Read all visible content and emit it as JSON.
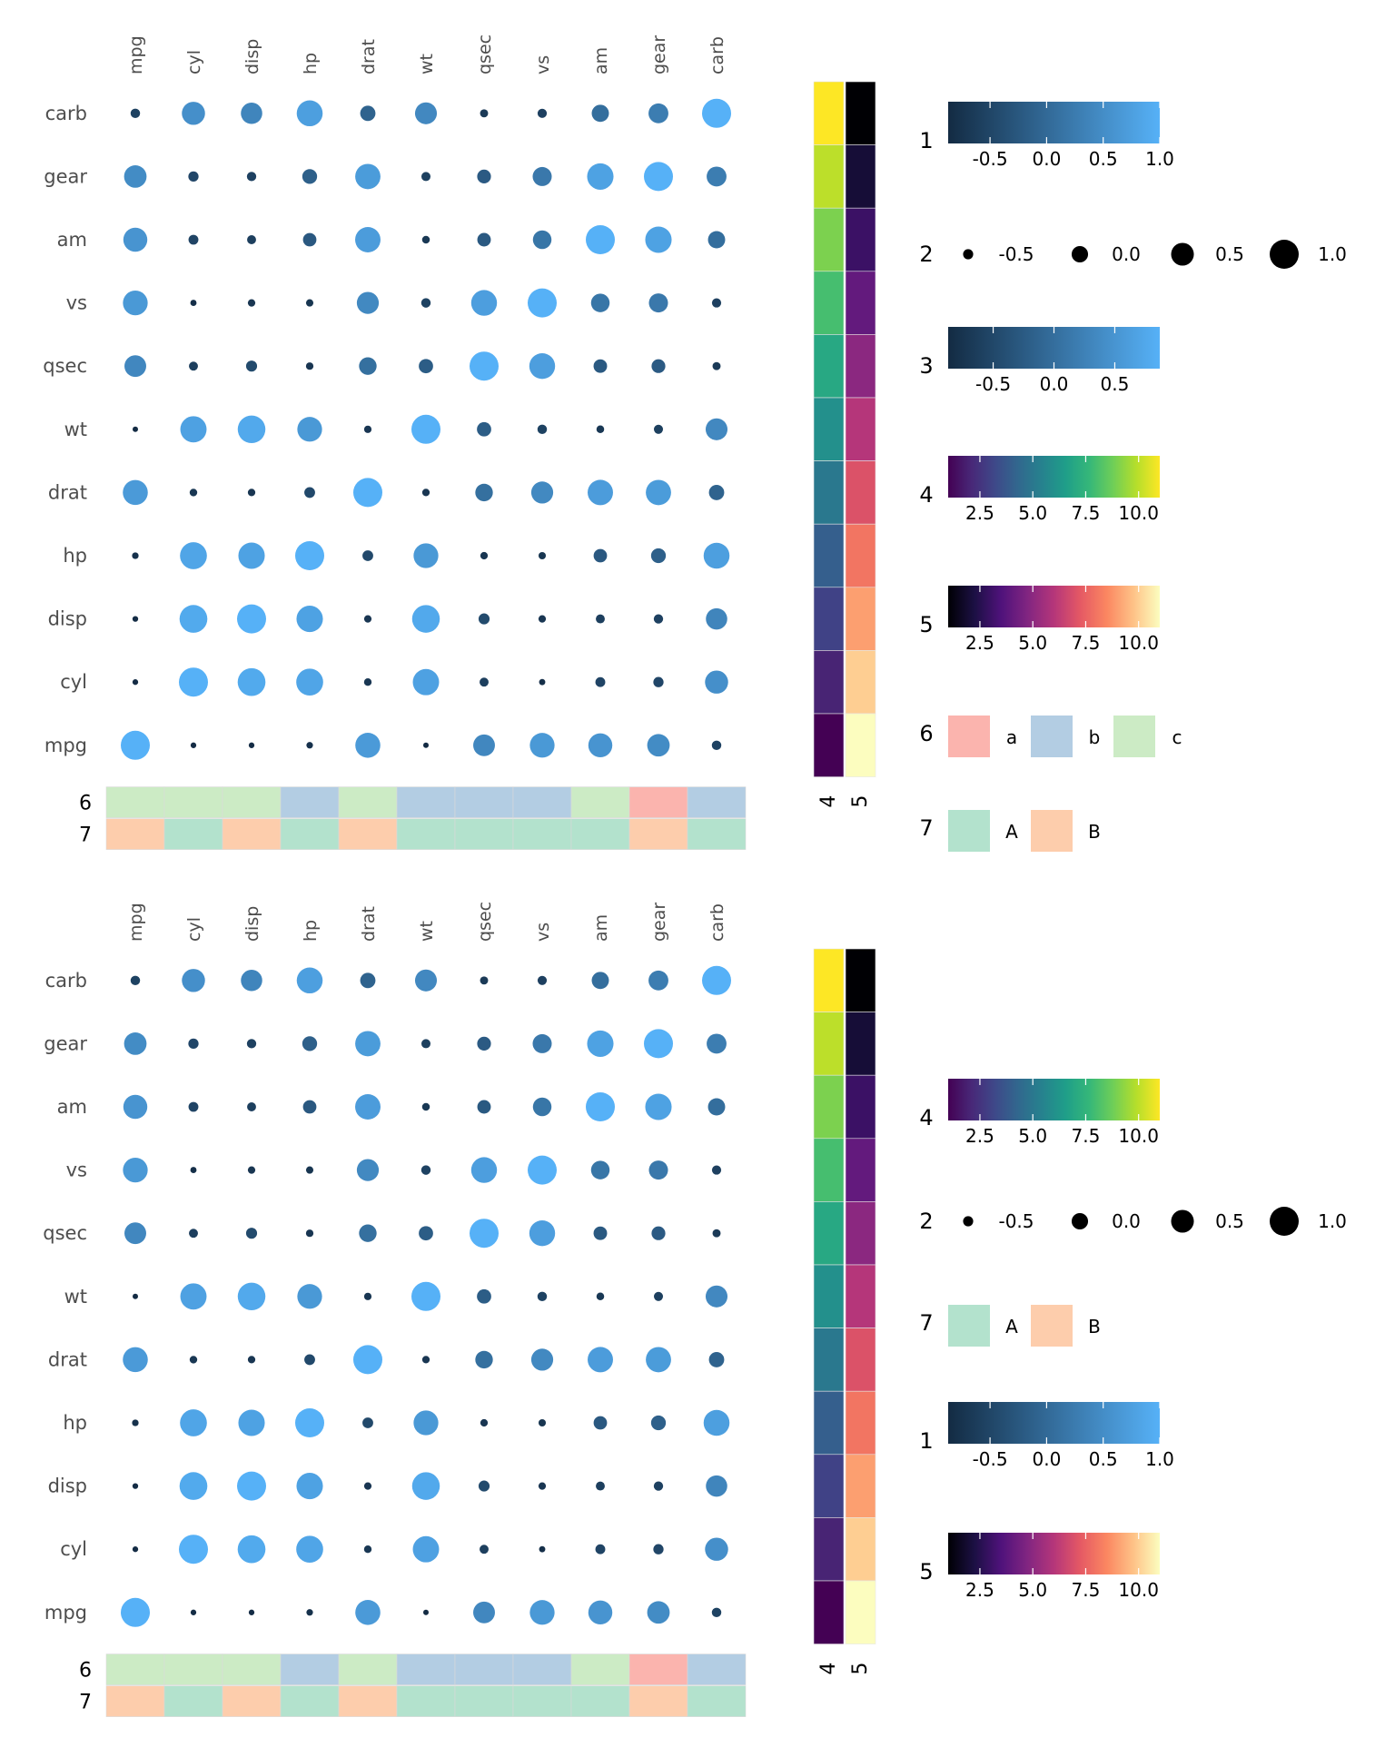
{
  "chart_data": [
    {
      "type": "heatmap",
      "variables": [
        "mpg",
        "cyl",
        "disp",
        "hp",
        "drat",
        "wt",
        "qsec",
        "vs",
        "am",
        "gear",
        "carb"
      ],
      "rows": [
        "carb",
        "gear",
        "am",
        "vs",
        "qsec",
        "wt",
        "drat",
        "hp",
        "disp",
        "cyl",
        "mpg"
      ],
      "correlation": [
        [
          1.0,
          -0.85,
          -0.85,
          -0.78,
          0.68,
          -0.87,
          0.42,
          0.66,
          0.6,
          0.48,
          -0.55
        ],
        [
          -0.85,
          1.0,
          0.9,
          0.83,
          -0.7,
          0.78,
          -0.59,
          -0.81,
          -0.52,
          -0.49,
          0.53
        ],
        [
          -0.85,
          0.9,
          1.0,
          0.79,
          -0.71,
          0.89,
          -0.43,
          -0.71,
          -0.59,
          -0.56,
          0.39
        ],
        [
          -0.78,
          0.83,
          0.79,
          1.0,
          -0.45,
          0.66,
          -0.71,
          -0.72,
          -0.24,
          -0.13,
          0.75
        ],
        [
          0.68,
          -0.7,
          -0.71,
          -0.45,
          1.0,
          -0.71,
          0.09,
          0.44,
          0.71,
          0.7,
          -0.09
        ],
        [
          -0.87,
          0.78,
          0.89,
          0.66,
          -0.71,
          1.0,
          -0.17,
          -0.55,
          -0.69,
          -0.58,
          0.43
        ],
        [
          0.42,
          -0.59,
          -0.43,
          -0.71,
          0.09,
          -0.17,
          1.0,
          0.74,
          -0.23,
          -0.21,
          -0.66
        ],
        [
          0.66,
          -0.81,
          -0.71,
          -0.72,
          0.44,
          -0.55,
          0.74,
          1.0,
          0.17,
          0.21,
          -0.57
        ],
        [
          0.6,
          -0.52,
          -0.59,
          -0.24,
          0.71,
          -0.69,
          -0.23,
          0.17,
          1.0,
          0.79,
          0.06
        ],
        [
          0.48,
          -0.49,
          -0.56,
          -0.13,
          0.7,
          -0.58,
          -0.21,
          0.21,
          0.79,
          1.0,
          0.27
        ],
        [
          -0.55,
          0.53,
          0.39,
          0.75,
          -0.09,
          0.43,
          -0.66,
          -0.57,
          0.06,
          0.27,
          1.0
        ]
      ],
      "right_annotations": [
        {
          "label": "4",
          "palette": "viridis",
          "values_top_to_bottom": [
            11,
            10,
            9,
            8,
            7,
            6,
            5,
            4,
            3,
            2,
            1
          ]
        },
        {
          "label": "5",
          "palette": "magma",
          "values_top_to_bottom": [
            1,
            2,
            3,
            4,
            5,
            6,
            7,
            8,
            9,
            10,
            11
          ]
        }
      ],
      "bottom_annotations": [
        {
          "label": "6",
          "values": [
            "c",
            "c",
            "c",
            "b",
            "c",
            "b",
            "b",
            "b",
            "c",
            "a",
            "b"
          ]
        },
        {
          "label": "7",
          "values": [
            "B",
            "A",
            "B",
            "A",
            "B",
            "A",
            "A",
            "A",
            "A",
            "B",
            "A"
          ]
        }
      ],
      "legends": [
        {
          "label": "1",
          "kind": "colorbar",
          "palette": "blues",
          "range": [
            -0.87,
            1.0
          ],
          "ticks": [
            "-0.5",
            "0.0",
            "0.5",
            "1.0"
          ],
          "tick_values": [
            -0.5,
            0,
            0.5,
            1.0
          ]
        },
        {
          "label": "2",
          "kind": "size",
          "ticks": [
            "-0.5",
            "0.0",
            "0.5",
            "1.0"
          ],
          "tick_values": [
            -0.5,
            0,
            0.5,
            1.0
          ]
        },
        {
          "label": "3",
          "kind": "colorbar",
          "palette": "blues",
          "range": [
            -0.87,
            0.87
          ],
          "ticks": [
            "-0.5",
            "0.0",
            "0.5"
          ],
          "tick_values": [
            -0.5,
            0,
            0.5
          ]
        },
        {
          "label": "4",
          "kind": "colorbar",
          "palette": "viridis",
          "range": [
            1,
            11
          ],
          "ticks": [
            "2.5",
            "5.0",
            "7.5",
            "10.0"
          ],
          "tick_values": [
            2.5,
            5,
            7.5,
            10
          ]
        },
        {
          "label": "5",
          "kind": "colorbar",
          "palette": "magma",
          "range": [
            1,
            11
          ],
          "ticks": [
            "2.5",
            "5.0",
            "7.5",
            "10.0"
          ],
          "tick_values": [
            2.5,
            5,
            7.5,
            10
          ]
        },
        {
          "label": "6",
          "kind": "discrete",
          "keys": [
            "a",
            "b",
            "c"
          ]
        },
        {
          "label": "7",
          "kind": "discrete",
          "keys": [
            "A",
            "B"
          ]
        }
      ]
    },
    {
      "type": "heatmap",
      "same_data_as_panel": 1,
      "legend_order": [
        "4",
        "2",
        "7",
        "1",
        "5"
      ]
    }
  ],
  "colors": {
    "blue_low": "#132b43",
    "blue_high": "#56b1f7",
    "annotation_6": {
      "a": "#fbb4ae",
      "b": "#b3cde3",
      "c": "#ccebc5"
    },
    "annotation_7": {
      "A": "#b3e2cd",
      "B": "#fdcdac"
    }
  }
}
